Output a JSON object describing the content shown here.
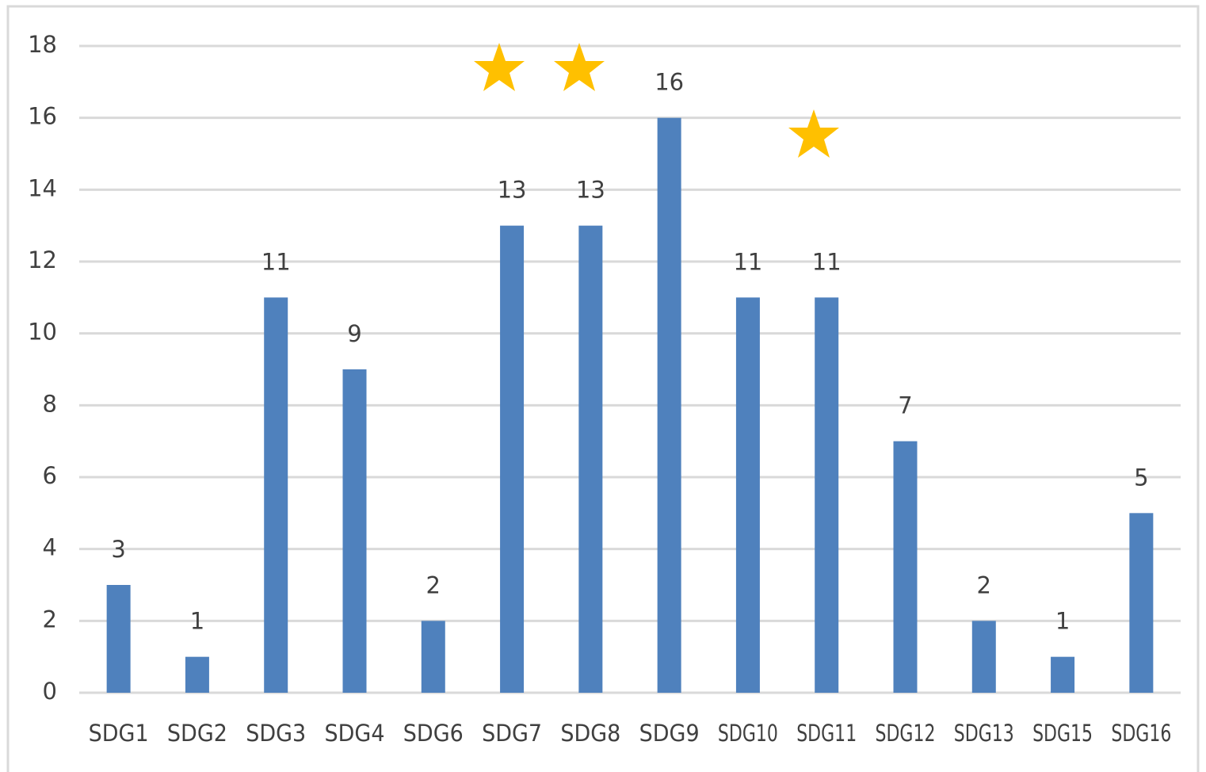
{
  "chart_data": {
    "type": "bar",
    "categories": [
      "SDG1",
      "SDG2",
      "SDG3",
      "SDG4",
      "SDG6",
      "SDG7",
      "SDG8",
      "SDG9",
      "SDG10",
      "SDG11",
      "SDG12",
      "SDG13",
      "SDG15",
      "SDG16"
    ],
    "values": [
      3,
      1,
      11,
      9,
      2,
      13,
      13,
      16,
      11,
      11,
      7,
      2,
      1,
      5
    ],
    "color": "#4f81bd",
    "ylim": [
      0,
      18
    ],
    "yticks": [
      0,
      2,
      4,
      6,
      8,
      10,
      12,
      14,
      16,
      18
    ],
    "grid": true
  }
}
